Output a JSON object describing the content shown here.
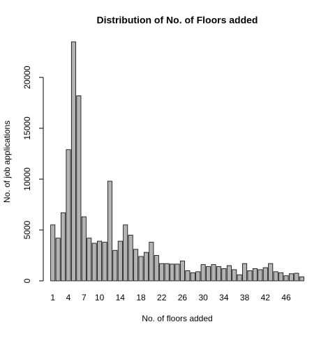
{
  "chart_data": {
    "type": "bar",
    "title": "Distribution of No. of Floors added",
    "x_label": "No. of floors added",
    "y_label": "No. of job applications",
    "categories": [
      "1",
      null,
      null,
      "4",
      null,
      null,
      "7",
      null,
      null,
      "10",
      null,
      null,
      null,
      "14",
      null,
      null,
      null,
      "18",
      null,
      null,
      null,
      "22",
      null,
      null,
      null,
      "26",
      null,
      null,
      null,
      "30",
      null,
      null,
      null,
      "34",
      null,
      null,
      null,
      "38",
      null,
      null,
      null,
      "42",
      null,
      null,
      null,
      "46",
      null,
      null,
      null
    ],
    "values": [
      5500,
      4200,
      6700,
      12900,
      23500,
      18200,
      6300,
      4200,
      3700,
      3900,
      3800,
      9800,
      3000,
      3900,
      5500,
      4500,
      3100,
      2400,
      2800,
      3800,
      2500,
      1700,
      1700,
      1650,
      1650,
      1950,
      1000,
      800,
      900,
      1600,
      1400,
      1600,
      1400,
      1200,
      1500,
      1100,
      600,
      1700,
      1000,
      1200,
      1100,
      1300,
      1700,
      900,
      800,
      500,
      700,
      750,
      400
    ],
    "color": "#b3b3b3",
    "ylim": [
      0,
      23500
    ],
    "yticks": [
      0,
      5000,
      10000,
      15000,
      20000
    ]
  }
}
